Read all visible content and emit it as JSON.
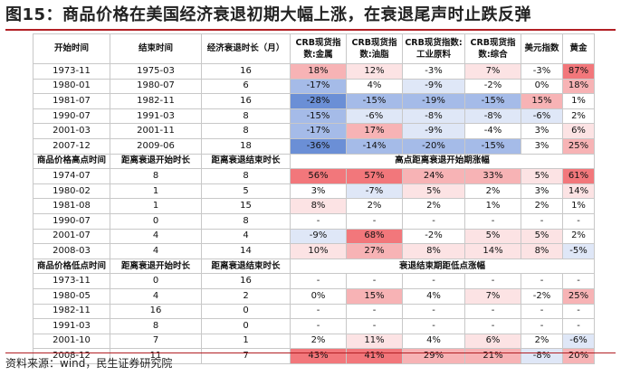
{
  "title": "图15：商品价格在美国经济衰退初期大幅上涨，在衰退尾声时止跌反弹",
  "source": "资料来源：wind，民生证券研究院",
  "colors": {
    "pos_strong": "#f2777b",
    "pos_mid": "#f7b3b5",
    "pos_light": "#fce3e4",
    "neg_strong": "#6b8fd6",
    "neg_mid": "#a5bbe8",
    "neg_light": "#dfe7f7",
    "title_rule": "#b21f24"
  },
  "header": {
    "col1": "开始时间",
    "col2": "结束时间",
    "col3": "经济衰退时长（月）",
    "col4": "CRB现货指数:金属",
    "col5": "CRB现货指数:油脂",
    "col6": "CRB现货指数:工业原料",
    "col7": "CRB现货指数:综合",
    "col8": "美元指数",
    "col9": "黄金"
  },
  "section1": [
    {
      "a": "1973-11",
      "b": "1975-03",
      "c": "16",
      "v": [
        "18%",
        "12%",
        "-3%",
        "7%",
        "-3%",
        "87%"
      ]
    },
    {
      "a": "1980-01",
      "b": "1980-07",
      "c": "6",
      "v": [
        "-17%",
        "4%",
        "-9%",
        "-2%",
        "0%",
        "18%"
      ]
    },
    {
      "a": "1981-07",
      "b": "1982-11",
      "c": "16",
      "v": [
        "-28%",
        "-15%",
        "-19%",
        "-15%",
        "15%",
        "1%"
      ]
    },
    {
      "a": "1990-07",
      "b": "1991-03",
      "c": "8",
      "v": [
        "-15%",
        "-6%",
        "-8%",
        "-8%",
        "-6%",
        "2%"
      ]
    },
    {
      "a": "2001-03",
      "b": "2001-11",
      "c": "8",
      "v": [
        "-17%",
        "17%",
        "-9%",
        "-4%",
        "3%",
        "6%"
      ]
    },
    {
      "a": "2007-12",
      "b": "2009-06",
      "c": "18",
      "v": [
        "-36%",
        "-14%",
        "-20%",
        "-15%",
        "3%",
        "25%"
      ]
    }
  ],
  "section2_header": {
    "col1": "商品价格高点时间",
    "col2": "距离衰退开始时长",
    "col3": "距离衰退结束时长",
    "merged": "高点距离衰退开始期涨幅"
  },
  "section2": [
    {
      "a": "1974-07",
      "b": "8",
      "c": "8",
      "v": [
        "56%",
        "57%",
        "24%",
        "33%",
        "5%",
        "61%"
      ]
    },
    {
      "a": "1980-02",
      "b": "1",
      "c": "5",
      "v": [
        "3%",
        "-7%",
        "5%",
        "2%",
        "3%",
        "14%"
      ]
    },
    {
      "a": "1981-08",
      "b": "1",
      "c": "15",
      "v": [
        "8%",
        "2%",
        "2%",
        "1%",
        "2%",
        "1%"
      ]
    },
    {
      "a": "1990-07",
      "b": "0",
      "c": "8",
      "v": [
        "-",
        "-",
        "-",
        "-",
        "-",
        "-"
      ]
    },
    {
      "a": "2001-07",
      "b": "4",
      "c": "4",
      "v": [
        "-9%",
        "68%",
        "-2%",
        "5%",
        "5%",
        "2%"
      ]
    },
    {
      "a": "2008-03",
      "b": "4",
      "c": "14",
      "v": [
        "10%",
        "27%",
        "8%",
        "14%",
        "8%",
        "-5%"
      ]
    }
  ],
  "section3_header": {
    "col1": "商品价格低点时间",
    "col2": "距离衰退开始时长",
    "col3": "距离衰退结束时长",
    "merged": "衰退结束期距低点涨幅"
  },
  "section3": [
    {
      "a": "1973-11",
      "b": "0",
      "c": "16",
      "v": [
        "-",
        "-",
        "-",
        "-",
        "-",
        "-"
      ]
    },
    {
      "a": "1980-05",
      "b": "4",
      "c": "2",
      "v": [
        "0%",
        "15%",
        "4%",
        "7%",
        "-2%",
        "25%"
      ]
    },
    {
      "a": "1982-11",
      "b": "16",
      "c": "0",
      "v": [
        "-",
        "-",
        "-",
        "-",
        "-",
        "-"
      ]
    },
    {
      "a": "1991-03",
      "b": "8",
      "c": "0",
      "v": [
        "-",
        "-",
        "-",
        "-",
        "-",
        "-"
      ]
    },
    {
      "a": "2001-10",
      "b": "7",
      "c": "1",
      "v": [
        "2%",
        "11%",
        "4%",
        "6%",
        "2%",
        "-6%"
      ]
    },
    {
      "a": "2008-12",
      "b": "11",
      "c": "7",
      "v": [
        "43%",
        "41%",
        "29%",
        "21%",
        "-8%",
        "20%"
      ]
    }
  ]
}
